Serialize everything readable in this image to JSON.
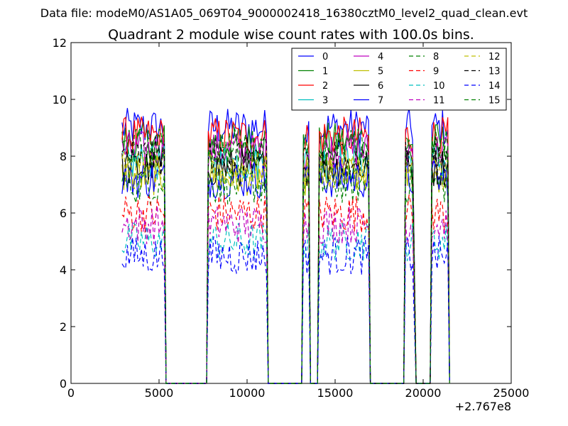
{
  "figure": {
    "suptitle": "Data file: modeM0/AS1A05_069T04_9000002418_16380cztM0_level2_quad_clean.evt",
    "title": "Quadrant 2 module wise count rates with 100.0s bins."
  },
  "chart_data": {
    "type": "line",
    "title": "Quadrant 2 module wise count rates with 100.0s bins.",
    "xlabel": "",
    "ylabel": "",
    "x_offset_label": "+2.767e8",
    "xlim": [
      0,
      25000
    ],
    "ylim": [
      0,
      12
    ],
    "xticks": [
      0,
      5000,
      10000,
      15000,
      20000,
      25000
    ],
    "yticks": [
      0,
      2,
      4,
      6,
      8,
      10,
      12
    ],
    "legend": {
      "placement": "top-right",
      "columns": 4
    },
    "segments": [
      {
        "start": 2900,
        "end": 5300,
        "drop_to_zero_at": 5400
      },
      {
        "start": 7800,
        "end": 11100,
        "drop_to_zero_at": 11200
      },
      {
        "start": 13200,
        "end": 13500,
        "drop_to_zero_at": 13600
      },
      {
        "start": 14100,
        "end": 16900,
        "drop_to_zero_at": 17000
      },
      {
        "start": 19000,
        "end": 19400,
        "drop_to_zero_at": 19600
      },
      {
        "start": 20500,
        "end": 21400,
        "drop_to_zero_at": 21500
      }
    ],
    "series": [
      {
        "name": "0",
        "color": "#0000ff",
        "dash": "solid",
        "level": 9.0
      },
      {
        "name": "1",
        "color": "#008000",
        "dash": "solid",
        "level": 8.5
      },
      {
        "name": "2",
        "color": "#ff0000",
        "dash": "solid",
        "level": 8.7
      },
      {
        "name": "3",
        "color": "#00bfbf",
        "dash": "solid",
        "level": 7.8
      },
      {
        "name": "4",
        "color": "#bf00bf",
        "dash": "solid",
        "level": 8.2
      },
      {
        "name": "5",
        "color": "#bfbf00",
        "dash": "solid",
        "level": 7.3
      },
      {
        "name": "6",
        "color": "#000000",
        "dash": "solid",
        "level": 7.6
      },
      {
        "name": "7",
        "color": "#0000ff",
        "dash": "solid",
        "level": 7.2
      },
      {
        "name": "8",
        "color": "#008000",
        "dash": "dashed",
        "level": 7.0
      },
      {
        "name": "9",
        "color": "#ff0000",
        "dash": "dashed",
        "level": 6.0
      },
      {
        "name": "10",
        "color": "#00bfbf",
        "dash": "dashed",
        "level": 5.0
      },
      {
        "name": "11",
        "color": "#bf00bf",
        "dash": "dashed",
        "level": 5.6
      },
      {
        "name": "12",
        "color": "#bfbf00",
        "dash": "dashed",
        "level": 7.5
      },
      {
        "name": "13",
        "color": "#000000",
        "dash": "dashed",
        "level": 8.0
      },
      {
        "name": "14",
        "color": "#0000ff",
        "dash": "dashed",
        "level": 4.5
      },
      {
        "name": "15",
        "color": "#008000",
        "dash": "dashed",
        "level": 8.3
      }
    ]
  }
}
